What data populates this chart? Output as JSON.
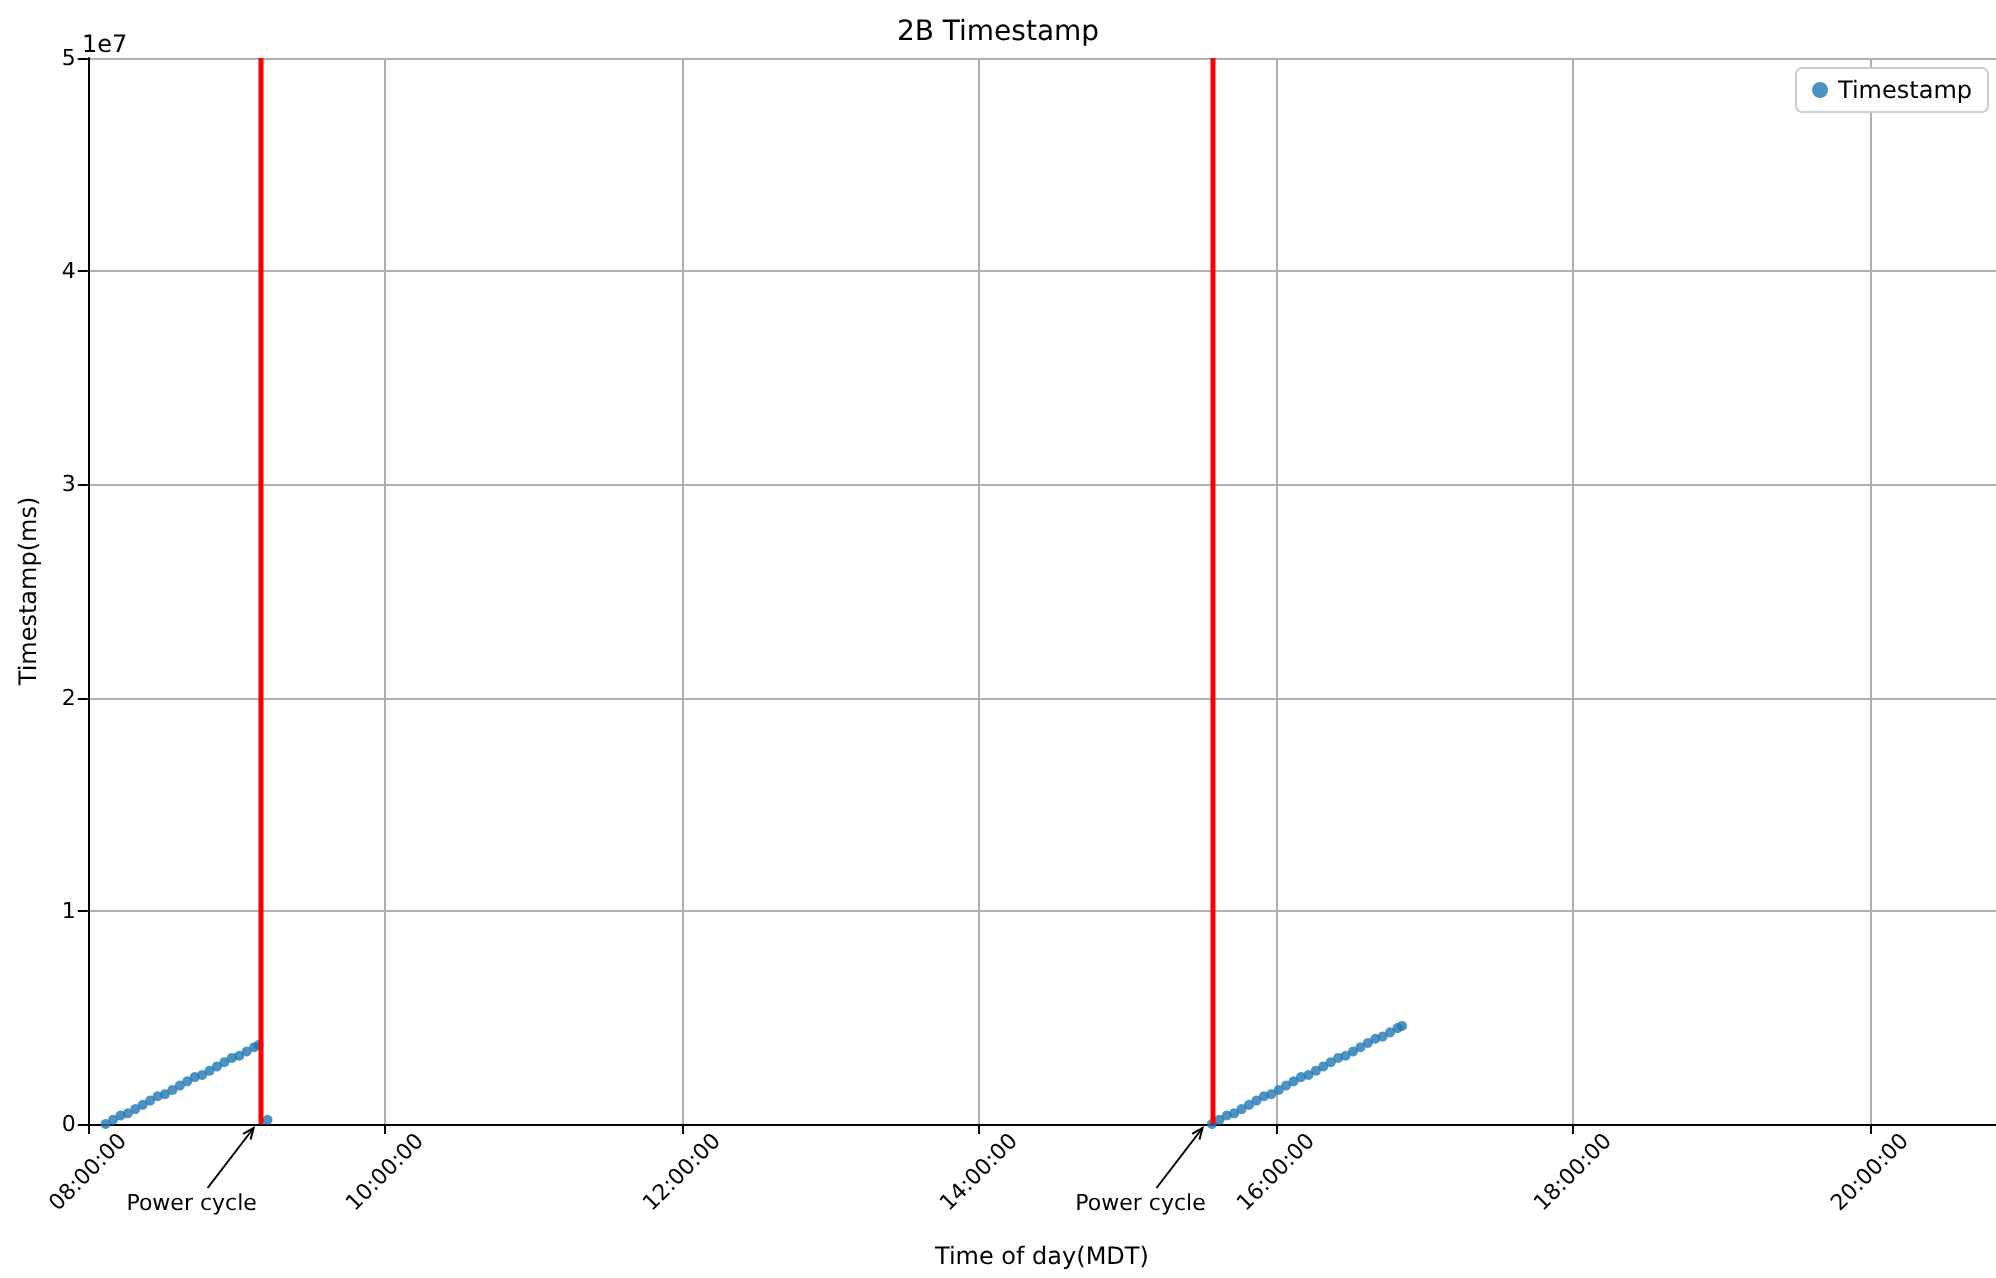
{
  "chart_data": {
    "type": "scatter",
    "title": "2B Timestamp",
    "xlabel": "Time of day(MDT)",
    "ylabel": "Timestamp(ms)",
    "series": [
      {
        "name": "Timestamp",
        "color": "#1f77b4",
        "x": [
          8.12,
          8.17,
          8.22,
          8.27,
          8.32,
          8.37,
          8.42,
          8.47,
          8.52,
          8.57,
          8.62,
          8.67,
          8.72,
          8.77,
          8.82,
          8.87,
          8.92,
          8.97,
          9.02,
          9.07,
          9.12,
          9.15,
          9.21,
          15.57,
          15.62,
          15.67,
          15.72,
          15.77,
          15.82,
          15.87,
          15.92,
          15.97,
          16.02,
          16.07,
          16.12,
          16.17,
          16.22,
          16.27,
          16.32,
          16.37,
          16.42,
          16.47,
          16.52,
          16.57,
          16.62,
          16.67,
          16.72,
          16.77,
          16.82,
          16.85
        ],
        "values": [
          0,
          0.02,
          0.04,
          0.05,
          0.07,
          0.09,
          0.11,
          0.13,
          0.14,
          0.16,
          0.18,
          0.2,
          0.22,
          0.23,
          0.25,
          0.27,
          0.29,
          0.31,
          0.32,
          0.34,
          0.36,
          0.37,
          0.02,
          0,
          0.02,
          0.04,
          0.05,
          0.07,
          0.09,
          0.11,
          0.13,
          0.14,
          0.16,
          0.18,
          0.2,
          0.22,
          0.23,
          0.25,
          0.27,
          0.29,
          0.31,
          0.32,
          0.34,
          0.36,
          0.38,
          0.4,
          0.41,
          0.43,
          0.45,
          0.46
        ]
      }
    ],
    "xlim": [
      8,
      20.85
    ],
    "xticks": [
      {
        "value": 8,
        "label": "08:00:00"
      },
      {
        "value": 10,
        "label": "10:00:00"
      },
      {
        "value": 12,
        "label": "12:00:00"
      },
      {
        "value": 14,
        "label": "14:00:00"
      },
      {
        "value": 16,
        "label": "16:00:00"
      },
      {
        "value": 18,
        "label": "18:00:00"
      },
      {
        "value": 20,
        "label": "20:00:00"
      }
    ],
    "ylim": [
      0,
      5
    ],
    "yticks": [
      0,
      1,
      2,
      3,
      4,
      5
    ],
    "ref_lines": [
      {
        "axis": "x",
        "value": 9.16,
        "color": "#ff0000"
      },
      {
        "axis": "x",
        "value": 15.57,
        "color": "#ff0000"
      }
    ],
    "annotations": [
      "1e7",
      {
        "text": "Power cycle",
        "x": 9.13,
        "y": 0
      },
      {
        "text": "Power cycle",
        "x": 15.52,
        "y": 0
      }
    ],
    "grid": true,
    "legend": "top right",
    "marker": "circle"
  }
}
